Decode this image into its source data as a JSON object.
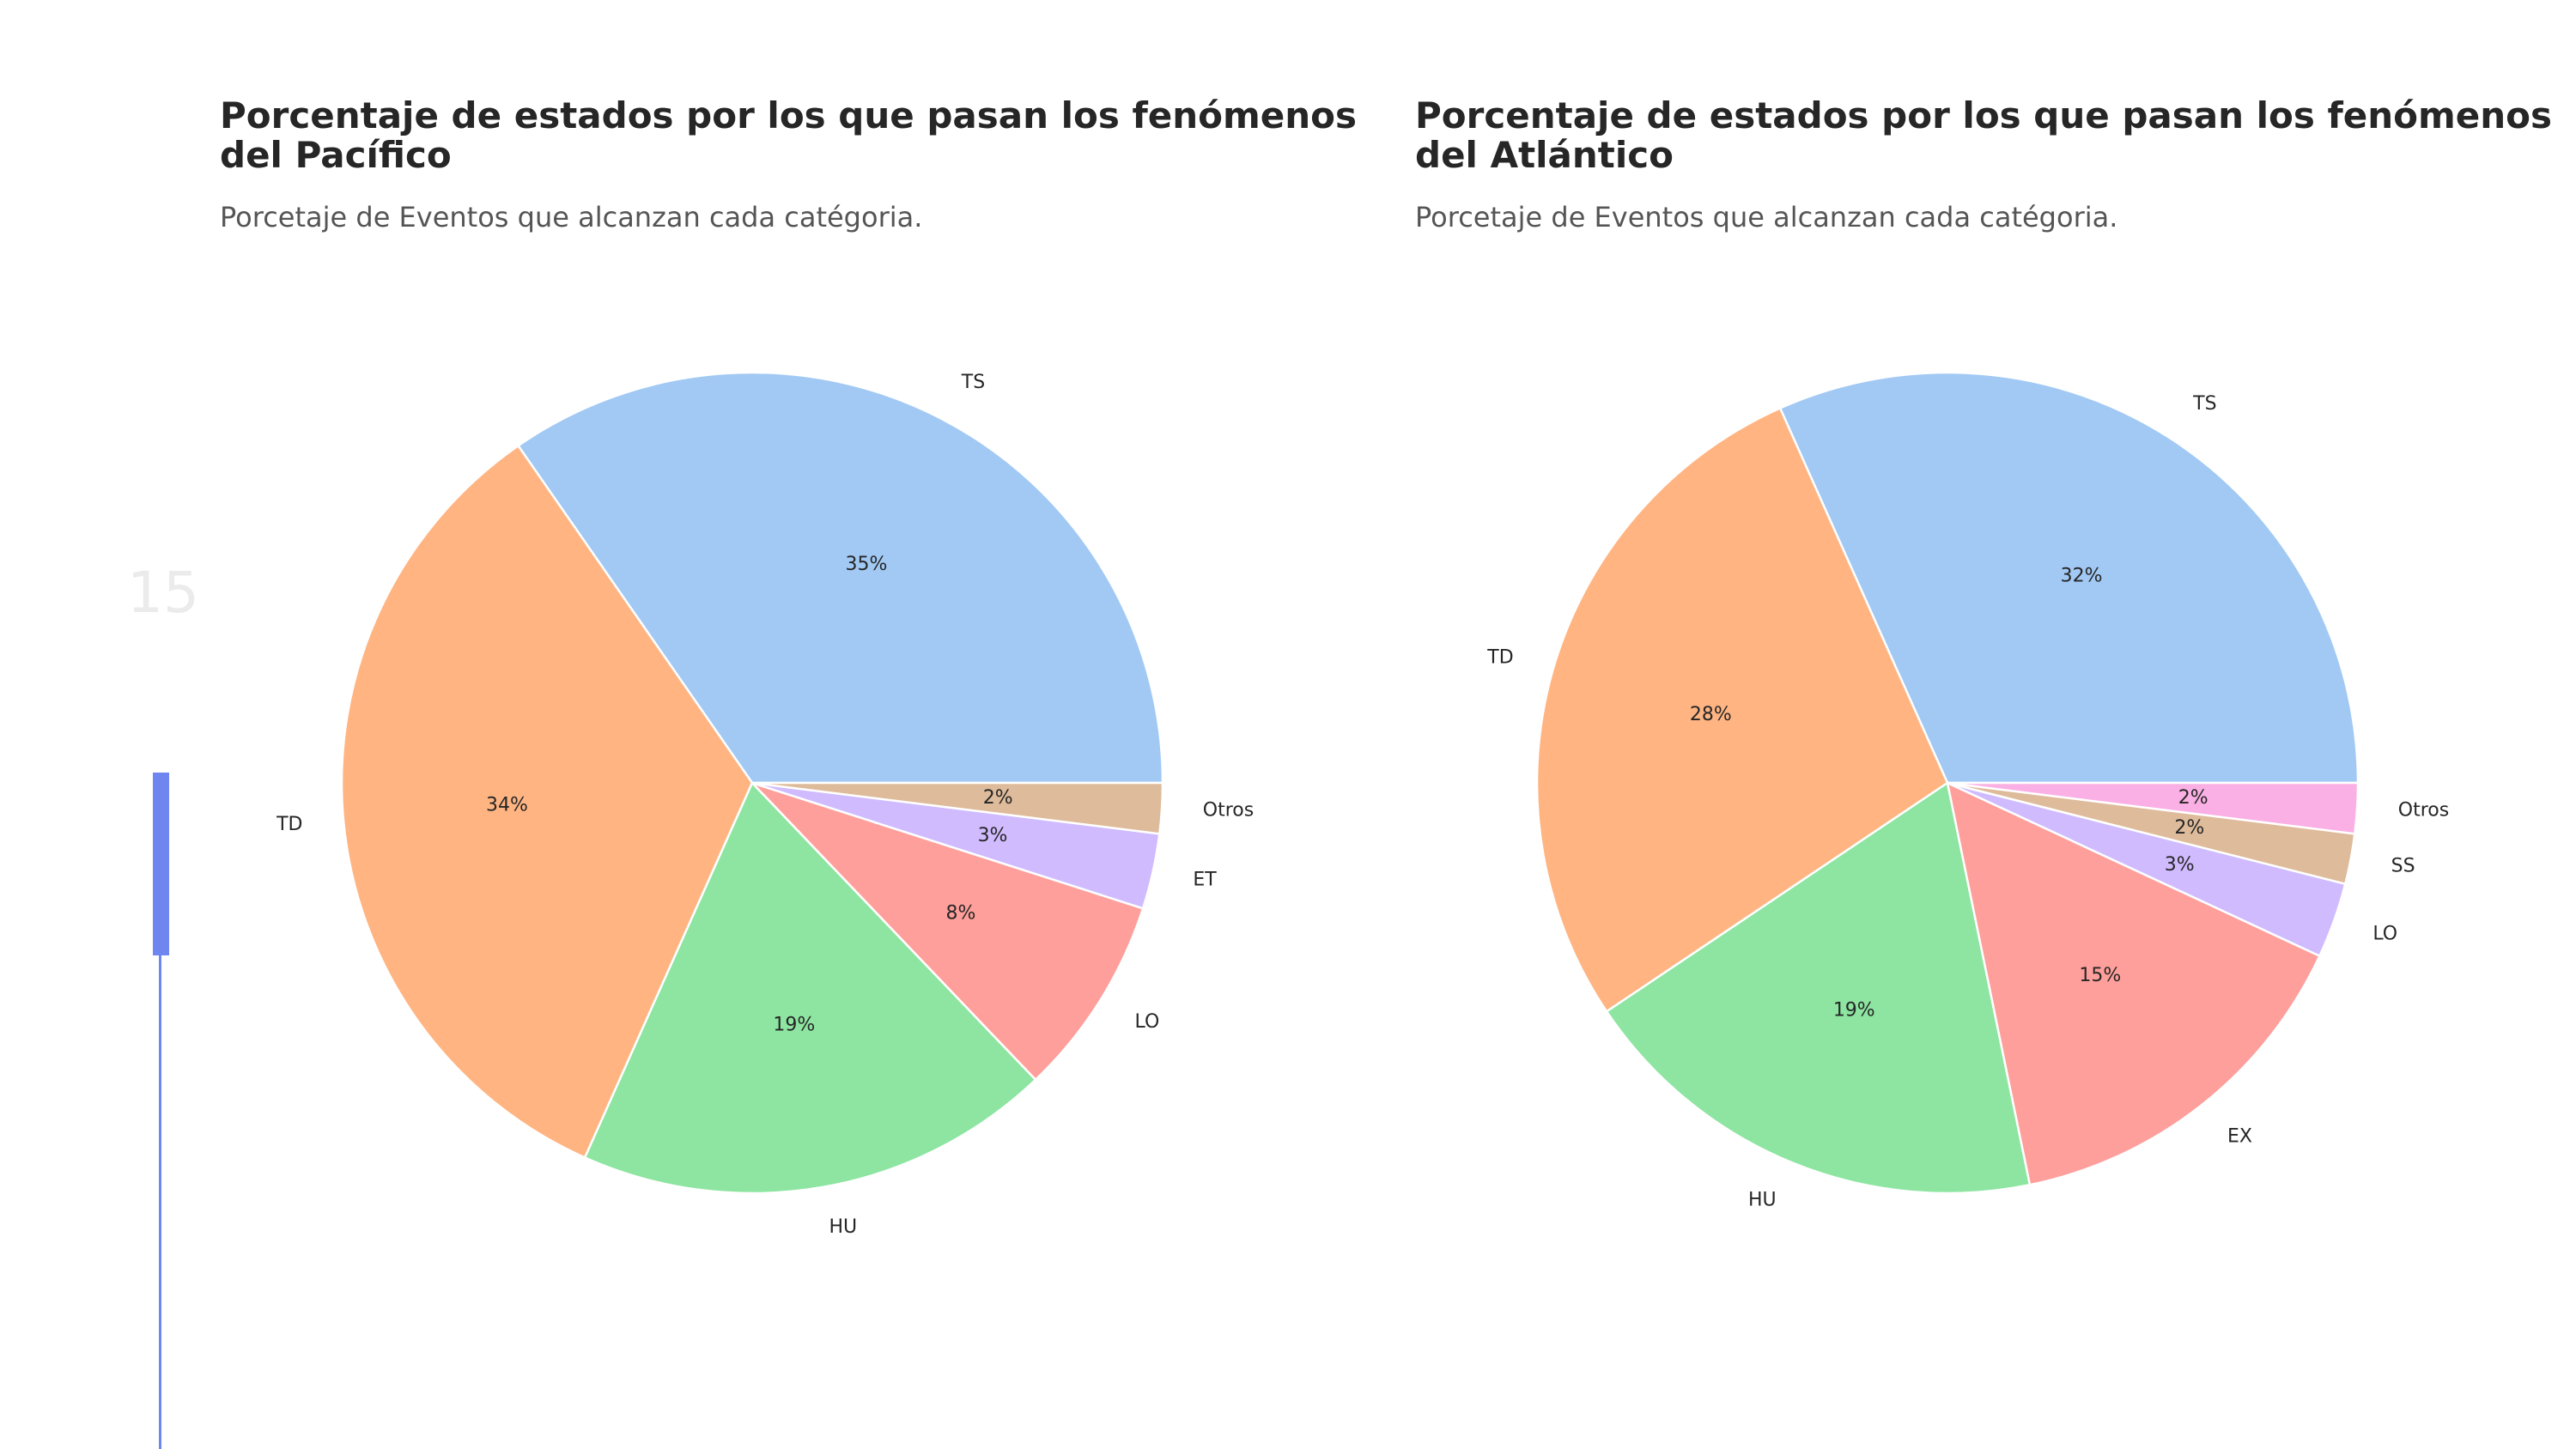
{
  "page": {
    "number": "15",
    "progress": 0.27,
    "accent_color": "#6f86f0"
  },
  "chart_data": [
    {
      "type": "pie",
      "title": "Porcentaje de estados por los que pasan los fenómenos del Pacífico",
      "subtitle": "Porcetaje de Eventos que alcanzan cada catégoria.",
      "startangle": 0,
      "direction": "counterclockwise",
      "categories": [
        "TS",
        "TD",
        "HU",
        "LO",
        "ET",
        "Otros"
      ],
      "values": [
        35,
        34,
        19,
        8,
        3,
        2
      ],
      "labels": [
        "35%",
        "34%",
        "19%",
        "8%",
        "3%",
        "2%"
      ],
      "colors": [
        "#a1c9f4",
        "#ffb482",
        "#8de5a1",
        "#ff9f9b",
        "#d0bbff",
        "#debb9b"
      ]
    },
    {
      "type": "pie",
      "title": "Porcentaje de estados por los que pasan los fenómenos del Atlántico",
      "subtitle": "Porcetaje de Eventos que alcanzan cada catégoria.",
      "startangle": 0,
      "direction": "counterclockwise",
      "categories": [
        "TS",
        "TD",
        "HU",
        "EX",
        "LO",
        "SS",
        "Otros"
      ],
      "values": [
        32,
        28,
        19,
        15,
        3,
        2,
        2
      ],
      "labels": [
        "32%",
        "28%",
        "19%",
        "15%",
        "3%",
        "2%",
        "2%"
      ],
      "colors": [
        "#a1c9f4",
        "#ffb482",
        "#8de5a1",
        "#ff9f9b",
        "#d0bbff",
        "#debb9b",
        "#fab0e4"
      ]
    }
  ]
}
